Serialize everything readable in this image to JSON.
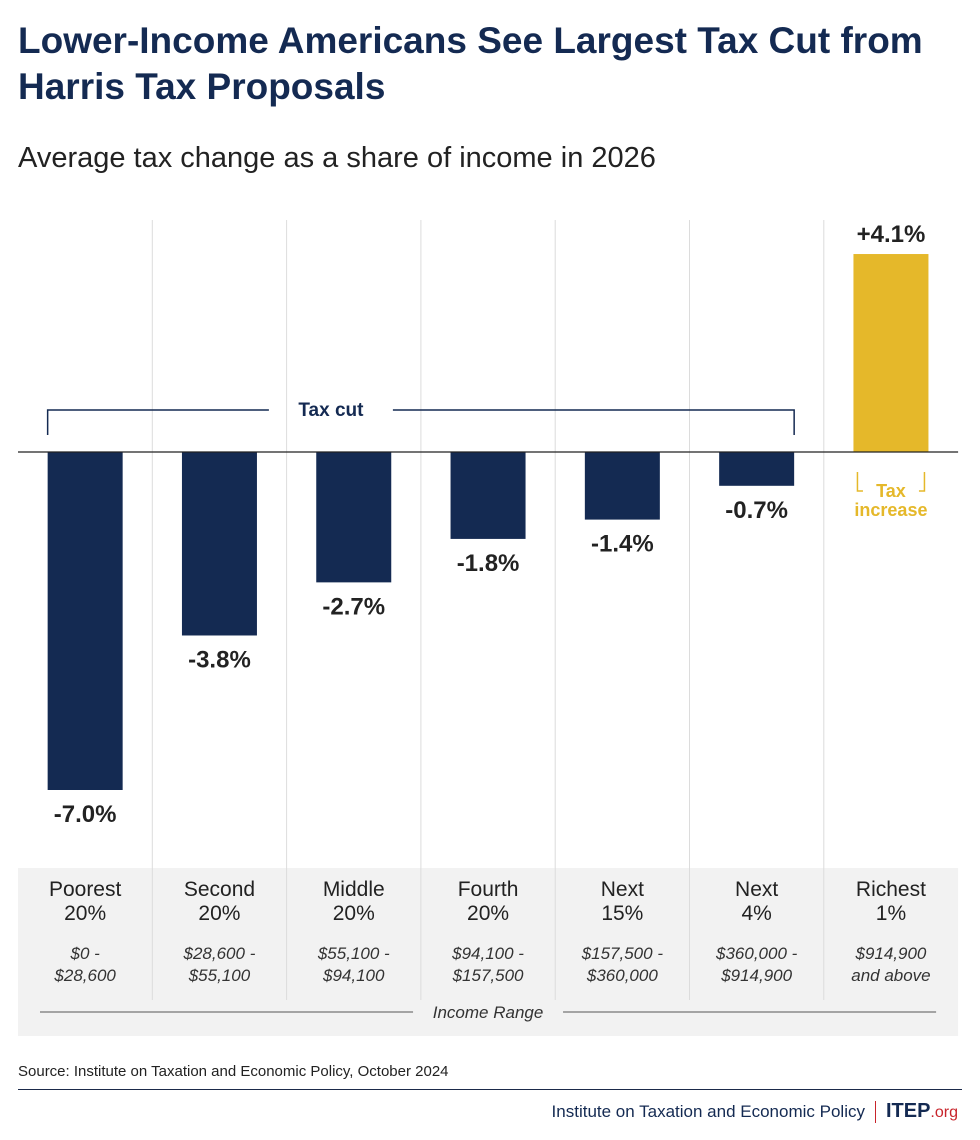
{
  "header": {
    "title": "Lower-Income Americans See Largest Tax Cut from Harris Tax Proposals",
    "subtitle": "Average tax change as a share of income in 2026"
  },
  "chart_data": {
    "type": "bar",
    "categories": [
      {
        "name_line1": "Poorest",
        "name_line2": "20%",
        "range_line1": "$0 -",
        "range_line2": "$28,600"
      },
      {
        "name_line1": "Second",
        "name_line2": "20%",
        "range_line1": "$28,600 -",
        "range_line2": "$55,100"
      },
      {
        "name_line1": "Middle",
        "name_line2": "20%",
        "range_line1": "$55,100 -",
        "range_line2": "$94,100"
      },
      {
        "name_line1": "Fourth",
        "name_line2": "20%",
        "range_line1": "$94,100 -",
        "range_line2": "$157,500"
      },
      {
        "name_line1": "Next",
        "name_line2": "15%",
        "range_line1": "$157,500 -",
        "range_line2": "$360,000"
      },
      {
        "name_line1": "Next",
        "name_line2": "4%",
        "range_line1": "$360,000 -",
        "range_line2": "$914,900"
      },
      {
        "name_line1": "Richest",
        "name_line2": "1%",
        "range_line1": "$914,900",
        "range_line2": "and above"
      }
    ],
    "values": [
      -7.0,
      -3.8,
      -2.7,
      -1.8,
      -1.4,
      -0.7,
      4.1
    ],
    "value_labels": [
      "-7.0%",
      "-3.8%",
      "-2.7%",
      "-1.8%",
      "-1.4%",
      "-0.7%",
      "+4.1%"
    ],
    "ylim": [
      -7.0,
      4.1
    ],
    "colors": {
      "cut": "#142a52",
      "increase": "#e5b82a"
    },
    "annotations": {
      "tax_cut": "Tax cut",
      "tax_increase_line1": "Tax",
      "tax_increase_line2": "increase"
    },
    "xlabel": "Income Range",
    "ylabel": ""
  },
  "footer": {
    "source": "Source: Institute on Taxation and Economic Policy, October 2024",
    "org_name": "Institute on Taxation and Economic Policy",
    "logo_main": "ITEP",
    "logo_suffix": ".org"
  }
}
